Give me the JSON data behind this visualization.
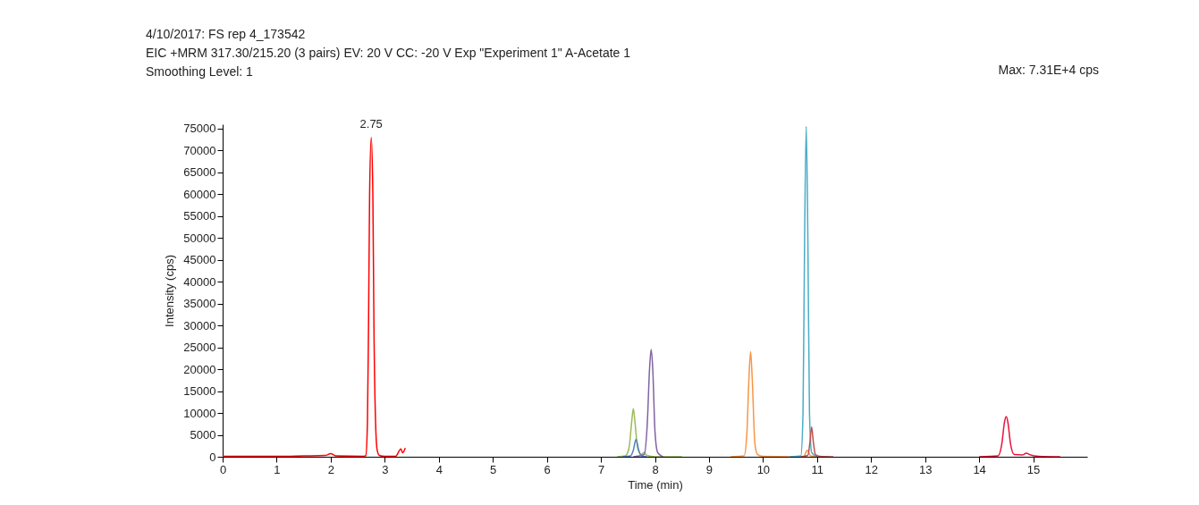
{
  "chart_data": {
    "type": "line",
    "title": "4/10/2017: FS rep 4_173542",
    "subtitle": "EIC +MRM 317.30/215.20 (3 pairs) EV: 20 V CC: -20 V Exp \"Experiment 1\" A-Acetate 1",
    "xlabel": "Time (min)",
    "ylabel": "Intensity (cps)",
    "annotations": [
      "Smoothing Level: 1",
      "Max: 7.31E+4 cps",
      {
        "text": "2.75",
        "x": 2.75,
        "y": 73000
      }
    ],
    "xlim": [
      0,
      16
    ],
    "ylim": [
      0,
      76000
    ],
    "xticks": [
      0,
      1,
      2,
      3,
      4,
      5,
      6,
      7,
      8,
      9,
      10,
      11,
      12,
      13,
      14,
      15
    ],
    "yticks": [
      0,
      5000,
      10000,
      15000,
      20000,
      25000,
      30000,
      35000,
      40000,
      45000,
      50000,
      55000,
      60000,
      65000,
      70000,
      75000
    ],
    "grid": false,
    "legend": false,
    "marker": "none",
    "line_style": "solid",
    "series": [
      {
        "color": "#ff0000",
        "x": [
          0,
          1.0,
          1.5,
          1.9,
          2.0,
          2.1,
          2.6,
          2.65,
          2.68,
          2.7,
          2.72,
          2.75,
          2.78,
          2.8,
          2.83,
          2.86,
          2.9,
          3.0,
          3.2,
          3.3,
          3.33,
          3.38
        ],
        "values": [
          100,
          100,
          200,
          300,
          700,
          200,
          100,
          300,
          8000,
          30000,
          60000,
          73000,
          60000,
          30000,
          8000,
          1500,
          300,
          100,
          100,
          1800,
          900,
          2000
        ]
      },
      {
        "color": "#9bbb59",
        "x": [
          7.3,
          7.45,
          7.52,
          7.57,
          7.6,
          7.63,
          7.68,
          7.75,
          7.8,
          7.85,
          8.0,
          8.5
        ],
        "values": [
          0,
          200,
          2000,
          8000,
          11000,
          8000,
          2000,
          500,
          1000,
          300,
          0,
          0
        ]
      },
      {
        "color": "#4f81bd",
        "x": [
          7.4,
          7.55,
          7.6,
          7.65,
          7.7,
          7.75,
          7.85
        ],
        "values": [
          0,
          200,
          1500,
          4000,
          1500,
          200,
          0
        ]
      },
      {
        "color": "#8064a2",
        "x": [
          7.6,
          7.8,
          7.86,
          7.9,
          7.93,
          7.96,
          8.0,
          8.05,
          8.15
        ],
        "values": [
          0,
          500,
          8000,
          20000,
          24500,
          20000,
          6000,
          1000,
          0
        ]
      },
      {
        "color": "#f79646",
        "x": [
          9.4,
          9.65,
          9.7,
          9.74,
          9.77,
          9.8,
          9.85,
          9.9,
          10.0,
          10.5,
          10.75,
          10.82,
          10.88,
          11.0
        ],
        "values": [
          0,
          200,
          5000,
          18000,
          24000,
          18000,
          3000,
          500,
          100,
          0,
          0,
          1500,
          200,
          0
        ]
      },
      {
        "color": "#4bacc6",
        "x": [
          10.5,
          10.7,
          10.74,
          10.77,
          10.8,
          10.83,
          10.86,
          10.9,
          11.0,
          11.2
        ],
        "values": [
          0,
          200,
          10000,
          50000,
          75500,
          50000,
          10000,
          1000,
          100,
          0
        ]
      },
      {
        "color": "#c0504d",
        "x": [
          10.7,
          10.83,
          10.87,
          10.9,
          10.93,
          10.97,
          11.05,
          11.3
        ],
        "values": [
          0,
          300,
          3500,
          6800,
          3500,
          500,
          100,
          0
        ]
      },
      {
        "color": "#e8143c",
        "x": [
          14.0,
          14.35,
          14.42,
          14.47,
          14.5,
          14.53,
          14.58,
          14.65,
          14.8,
          14.87,
          14.95,
          15.1,
          15.5
        ],
        "values": [
          0,
          200,
          3000,
          8000,
          9200,
          8000,
          3000,
          500,
          400,
          800,
          400,
          100,
          0
        ]
      }
    ]
  }
}
